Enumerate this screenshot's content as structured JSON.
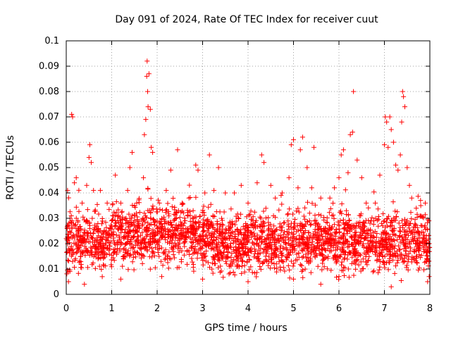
{
  "chart_data": {
    "type": "scatter",
    "title": "Day 091 of 2024, Rate Of TEC Index for receiver cuut",
    "xlabel": "GPS time / hours",
    "ylabel": "ROTI / TECUs",
    "xlim": [
      0,
      8
    ],
    "ylim": [
      0,
      0.1
    ],
    "xticks": [
      "0",
      "1",
      "2",
      "3",
      "4",
      "5",
      "6",
      "7",
      "8"
    ],
    "yticks": [
      "0",
      "0.01",
      "0.02",
      "0.03",
      "0.04",
      "0.05",
      "0.06",
      "0.07",
      "0.08",
      "0.09",
      "0.1"
    ],
    "xtick_values": [
      0,
      1,
      2,
      3,
      4,
      5,
      6,
      7,
      8
    ],
    "ytick_values": [
      0,
      0.01,
      0.02,
      0.03,
      0.04,
      0.05,
      0.06,
      0.07,
      0.08,
      0.09,
      0.1
    ],
    "grid": true,
    "marker": "+",
    "color": "#ff0000",
    "series": [
      {
        "name": "ROTI",
        "points": [
          [
            0.03,
            0.041
          ],
          [
            0.08,
            0.03
          ],
          [
            0.12,
            0.071
          ],
          [
            0.14,
            0.07
          ],
          [
            0.18,
            0.044
          ],
          [
            0.22,
            0.046
          ],
          [
            0.35,
            0.036
          ],
          [
            0.45,
            0.043
          ],
          [
            0.5,
            0.054
          ],
          [
            0.52,
            0.059
          ],
          [
            0.55,
            0.052
          ],
          [
            0.6,
            0.041
          ],
          [
            0.75,
            0.041
          ],
          [
            0.9,
            0.036
          ],
          [
            1.0,
            0.029
          ],
          [
            1.08,
            0.047
          ],
          [
            1.2,
            0.036
          ],
          [
            1.35,
            0.041
          ],
          [
            1.4,
            0.05
          ],
          [
            1.45,
            0.056
          ],
          [
            1.55,
            0.036
          ],
          [
            1.7,
            0.046
          ],
          [
            1.72,
            0.063
          ],
          [
            1.75,
            0.069
          ],
          [
            1.77,
            0.086
          ],
          [
            1.78,
            0.092
          ],
          [
            1.79,
            0.08
          ],
          [
            1.8,
            0.074
          ],
          [
            1.82,
            0.087
          ],
          [
            1.85,
            0.073
          ],
          [
            1.87,
            0.058
          ],
          [
            1.9,
            0.056
          ],
          [
            2.05,
            0.036
          ],
          [
            2.2,
            0.041
          ],
          [
            2.3,
            0.049
          ],
          [
            2.45,
            0.057
          ],
          [
            2.55,
            0.036
          ],
          [
            2.7,
            0.038
          ],
          [
            2.85,
            0.051
          ],
          [
            2.9,
            0.049
          ],
          [
            3.05,
            0.04
          ],
          [
            3.15,
            0.055
          ],
          [
            3.25,
            0.041
          ],
          [
            3.35,
            0.05
          ],
          [
            3.5,
            0.04
          ],
          [
            3.7,
            0.04
          ],
          [
            3.85,
            0.043
          ],
          [
            4.0,
            0.036
          ],
          [
            4.2,
            0.044
          ],
          [
            4.3,
            0.055
          ],
          [
            4.35,
            0.052
          ],
          [
            4.5,
            0.043
          ],
          [
            4.6,
            0.038
          ],
          [
            4.75,
            0.04
          ],
          [
            4.9,
            0.046
          ],
          [
            4.95,
            0.059
          ],
          [
            5.0,
            0.061
          ],
          [
            5.1,
            0.042
          ],
          [
            5.15,
            0.057
          ],
          [
            5.2,
            0.062
          ],
          [
            5.3,
            0.05
          ],
          [
            5.4,
            0.042
          ],
          [
            5.45,
            0.058
          ],
          [
            5.6,
            0.038
          ],
          [
            5.8,
            0.038
          ],
          [
            5.9,
            0.042
          ],
          [
            6.0,
            0.046
          ],
          [
            6.05,
            0.055
          ],
          [
            6.1,
            0.057
          ],
          [
            6.2,
            0.048
          ],
          [
            6.25,
            0.063
          ],
          [
            6.3,
            0.064
          ],
          [
            6.32,
            0.08
          ],
          [
            6.4,
            0.053
          ],
          [
            6.5,
            0.046
          ],
          [
            6.6,
            0.036
          ],
          [
            6.8,
            0.036
          ],
          [
            6.9,
            0.047
          ],
          [
            7.0,
            0.059
          ],
          [
            7.02,
            0.07
          ],
          [
            7.05,
            0.068
          ],
          [
            7.08,
            0.058
          ],
          [
            7.12,
            0.07
          ],
          [
            7.15,
            0.065
          ],
          [
            7.2,
            0.06
          ],
          [
            7.25,
            0.051
          ],
          [
            7.3,
            0.049
          ],
          [
            7.35,
            0.055
          ],
          [
            7.38,
            0.068
          ],
          [
            7.4,
            0.08
          ],
          [
            7.42,
            0.078
          ],
          [
            7.45,
            0.074
          ],
          [
            7.5,
            0.05
          ],
          [
            7.55,
            0.043
          ],
          [
            7.6,
            0.038
          ],
          [
            7.7,
            0.034
          ],
          [
            7.8,
            0.035
          ],
          [
            7.9,
            0.036
          ],
          [
            7.98,
            0.029
          ],
          [
            0.05,
            0.005
          ],
          [
            0.4,
            0.004
          ],
          [
            1.2,
            0.006
          ],
          [
            2.1,
            0.007
          ],
          [
            3.0,
            0.006
          ],
          [
            4.0,
            0.005
          ],
          [
            5.0,
            0.006
          ],
          [
            5.6,
            0.004
          ],
          [
            6.0,
            0.007
          ],
          [
            7.15,
            0.003
          ],
          [
            7.95,
            0.005
          ]
        ]
      }
    ],
    "background_cloud": "dense scatter, mostly 0.005-0.03 across 0-8 h"
  }
}
